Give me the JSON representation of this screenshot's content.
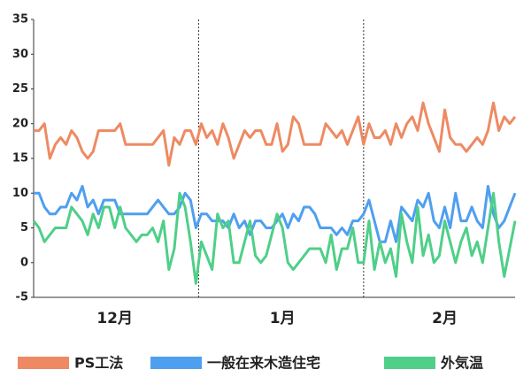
{
  "chart_data": {
    "type": "line",
    "categories": [
      null,
      null,
      null,
      null,
      null,
      null,
      null,
      null,
      null,
      null,
      null,
      null,
      null,
      null,
      null,
      "12月",
      null,
      null,
      null,
      null,
      null,
      null,
      null,
      null,
      null,
      null,
      null,
      null,
      null,
      null,
      null,
      null,
      null,
      null,
      null,
      null,
      null,
      null,
      null,
      null,
      null,
      null,
      null,
      null,
      null,
      null,
      "1月",
      null,
      null,
      null,
      null,
      null,
      null,
      null,
      null,
      null,
      null,
      null,
      null,
      null,
      null,
      null,
      null,
      null,
      null,
      null,
      null,
      null,
      null,
      null,
      null,
      null,
      null,
      null,
      null,
      null,
      "2月",
      null,
      null,
      null,
      null,
      null,
      null,
      null,
      null,
      null,
      null,
      null,
      null,
      null
    ],
    "series": [
      {
        "name": "PS工法",
        "color": "#ee8a63",
        "values": [
          19,
          19,
          20,
          15,
          17,
          18,
          17,
          19,
          18,
          16,
          15,
          16,
          19,
          19,
          19,
          19,
          20,
          17,
          17,
          17,
          17,
          17,
          17,
          18,
          19,
          14,
          18,
          17,
          19,
          19,
          17,
          20,
          18,
          19,
          17,
          20,
          18,
          15,
          17,
          19,
          18,
          19,
          19,
          17,
          17,
          20,
          16,
          17,
          21,
          20,
          17,
          17,
          17,
          17,
          20,
          19,
          18,
          19,
          17,
          19,
          21,
          17,
          20,
          18,
          18,
          19,
          17,
          20,
          18,
          20,
          21,
          19,
          23,
          20,
          18,
          16,
          22,
          18,
          17,
          17,
          16,
          17,
          18,
          17,
          19,
          23,
          19,
          21,
          20,
          21
        ]
      },
      {
        "name": "一般在来木造住宅",
        "color": "#4f9ff0",
        "values": [
          10,
          10,
          8,
          7,
          7,
          8,
          8,
          10,
          9,
          11,
          8,
          9,
          7,
          9,
          9,
          9,
          7,
          7,
          7,
          7,
          7,
          7,
          8,
          9,
          8,
          7,
          7,
          8,
          10,
          9,
          5,
          7,
          7,
          6,
          6,
          6,
          5,
          7,
          5,
          6,
          4,
          6,
          6,
          5,
          5,
          6,
          7,
          5,
          7,
          6,
          8,
          8,
          7,
          5,
          5,
          5,
          4,
          5,
          4,
          6,
          6,
          7,
          9,
          6,
          3,
          3,
          6,
          3,
          8,
          7,
          6,
          9,
          8,
          10,
          6,
          5,
          8,
          5,
          10,
          6,
          6,
          8,
          6,
          5,
          11,
          7,
          5,
          6,
          8,
          10
        ]
      },
      {
        "name": "外気温",
        "color": "#4fcf88",
        "values": [
          6,
          5,
          3,
          4,
          5,
          5,
          5,
          8,
          7,
          6,
          4,
          7,
          5,
          8,
          8,
          5,
          8,
          5,
          4,
          3,
          4,
          4,
          5,
          3,
          6,
          -1,
          2,
          10,
          8,
          3,
          -3,
          3,
          1,
          -1,
          7,
          5,
          6,
          0,
          0,
          3,
          6,
          1,
          0,
          1,
          4,
          7,
          5,
          0,
          -1,
          0,
          1,
          2,
          2,
          2,
          0,
          4,
          -1,
          2,
          2,
          5,
          0,
          0,
          6,
          -1,
          3,
          0,
          2,
          -2,
          7,
          3,
          0,
          8,
          1,
          4,
          0,
          1,
          6,
          3,
          0,
          3,
          5,
          1,
          3,
          0,
          5,
          10,
          3,
          -2,
          2,
          6
        ]
      }
    ],
    "ylim": [
      -5,
      35
    ],
    "yticks": [
      -5,
      0,
      5,
      10,
      15,
      20,
      25,
      30,
      35
    ]
  }
}
